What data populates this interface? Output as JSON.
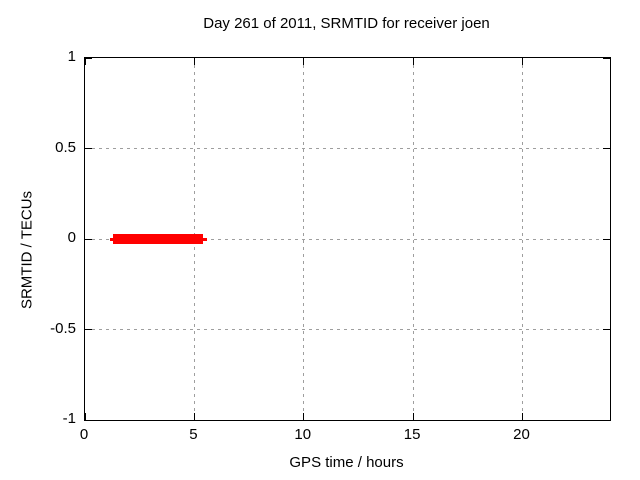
{
  "window": {
    "background_color": "#ffffff",
    "foreground_color": "#000000",
    "grid_color": "#9e9e9e"
  },
  "chart_data": {
    "type": "line",
    "title": "Day 261 of 2011, SRMTID for receiver joen",
    "xlabel": "GPS time / hours",
    "ylabel": "SRMTID / TECUs",
    "xlim": [
      0,
      24
    ],
    "ylim": [
      -1,
      1
    ],
    "xticks": [
      {
        "value": 0,
        "label": "0"
      },
      {
        "value": 5,
        "label": "5"
      },
      {
        "value": 10,
        "label": "10"
      },
      {
        "value": 15,
        "label": "15"
      },
      {
        "value": 20,
        "label": "20"
      }
    ],
    "yticks": [
      {
        "value": 1,
        "label": "1"
      },
      {
        "value": 0.5,
        "label": "0.5"
      },
      {
        "value": 0,
        "label": "0"
      },
      {
        "value": -0.5,
        "label": "-0.5"
      },
      {
        "value": -1,
        "label": "-1"
      }
    ],
    "grid": true,
    "legend": null,
    "series": [
      {
        "name": "SRMTID",
        "color": "#ff0000",
        "y": 0,
        "x_start": 1.15,
        "x_end": 5.57,
        "core_x_start": 1.28,
        "core_x_end": 5.4,
        "core_thickness_px": 10,
        "line_thickness_px": 3
      }
    ]
  }
}
